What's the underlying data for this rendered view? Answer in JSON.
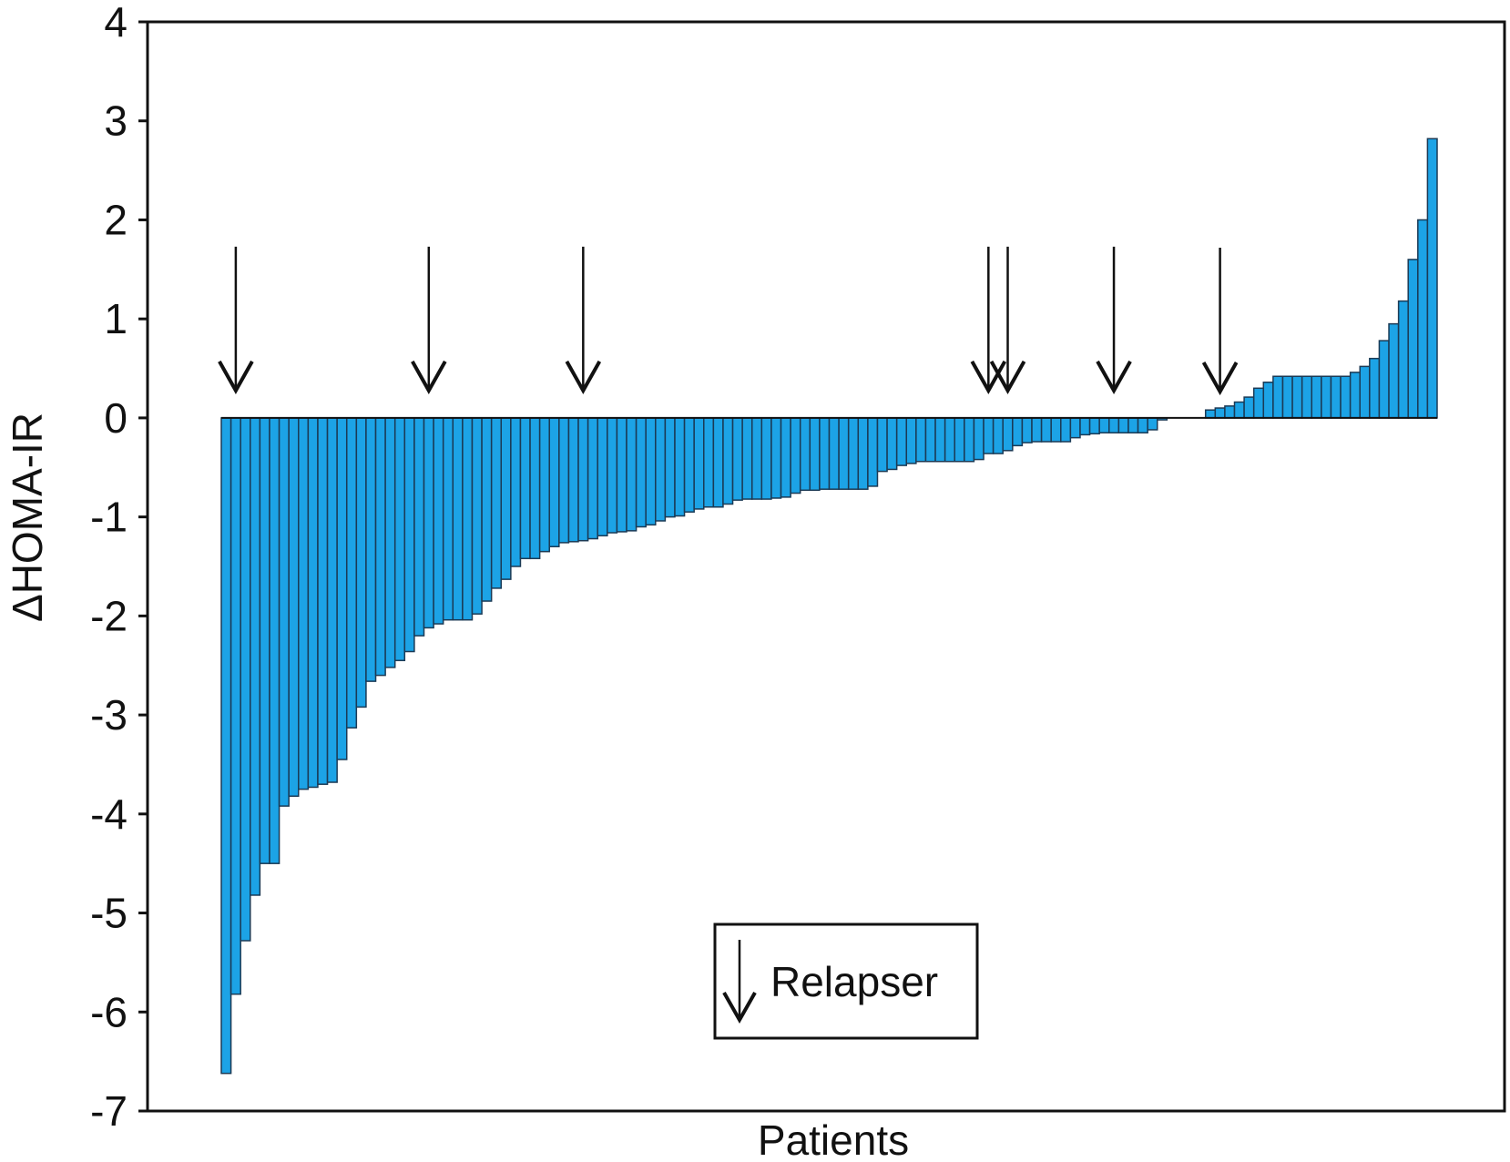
{
  "chart_data": {
    "type": "bar",
    "title": "",
    "xlabel": "Patients",
    "ylabel": "ΔHOMA-IR",
    "ylim": [
      -7,
      4
    ],
    "yticks": [
      4,
      3,
      2,
      1,
      0,
      -1,
      -2,
      -3,
      -4,
      -5,
      -6,
      -7
    ],
    "grid": false,
    "bar_color": "#1ca3e6",
    "bar_edge_color": "#1b3a55",
    "series": [
      {
        "values": [
          -6.62,
          -5.82,
          -5.28,
          -4.82,
          -4.5,
          -4.5,
          -3.92,
          -3.82,
          -3.75,
          -3.73,
          -3.7,
          -3.68,
          -3.45,
          -3.13,
          -2.92,
          -2.66,
          -2.6,
          -2.52,
          -2.45,
          -2.36,
          -2.2,
          -2.12,
          -2.08,
          -2.04,
          -2.04,
          -2.04,
          -1.98,
          -1.85,
          -1.72,
          -1.63,
          -1.5,
          -1.42,
          -1.42,
          -1.35,
          -1.3,
          -1.26,
          -1.25,
          -1.24,
          -1.22,
          -1.19,
          -1.16,
          -1.15,
          -1.14,
          -1.1,
          -1.08,
          -1.04,
          -1.0,
          -0.99,
          -0.95,
          -0.92,
          -0.9,
          -0.9,
          -0.87,
          -0.83,
          -0.82,
          -0.82,
          -0.82,
          -0.81,
          -0.8,
          -0.76,
          -0.73,
          -0.73,
          -0.72,
          -0.72,
          -0.72,
          -0.72,
          -0.72,
          -0.69,
          -0.54,
          -0.52,
          -0.48,
          -0.46,
          -0.44,
          -0.44,
          -0.44,
          -0.44,
          -0.44,
          -0.44,
          -0.42,
          -0.36,
          -0.36,
          -0.33,
          -0.28,
          -0.25,
          -0.24,
          -0.24,
          -0.24,
          -0.24,
          -0.2,
          -0.17,
          -0.16,
          -0.15,
          -0.15,
          -0.15,
          -0.15,
          -0.15,
          -0.12,
          -0.02,
          0.0,
          0.0,
          0.0,
          0.0,
          0.08,
          0.1,
          0.12,
          0.16,
          0.21,
          0.3,
          0.36,
          0.42,
          0.42,
          0.42,
          0.42,
          0.42,
          0.42,
          0.42,
          0.42,
          0.46,
          0.52,
          0.6,
          0.78,
          0.95,
          1.18,
          1.6,
          2.0,
          2.82
        ]
      }
    ],
    "relapser_markers": [
      1,
      21,
      37,
      79,
      81,
      92,
      103
    ],
    "legend": {
      "label": "Relapser",
      "placement": "bottom-center",
      "marker": "down-arrow"
    }
  }
}
